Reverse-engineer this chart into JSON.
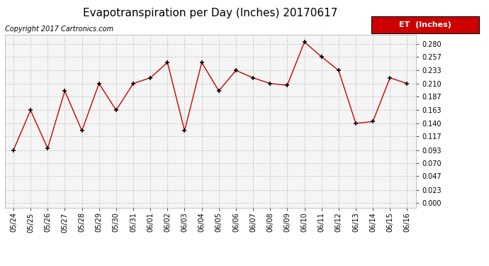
{
  "title": "Evapotranspiration per Day (Inches) 20170617",
  "copyright_text": "Copyright 2017 Cartronics.com",
  "legend_label": "ET  (Inches)",
  "legend_bg": "#cc0000",
  "legend_text_color": "#ffffff",
  "dates": [
    "05/24",
    "05/25",
    "05/26",
    "05/27",
    "05/28",
    "05/29",
    "05/30",
    "05/31",
    "06/01",
    "06/02",
    "06/03",
    "06/04",
    "06/05",
    "06/06",
    "06/07",
    "06/08",
    "06/09",
    "06/10",
    "06/11",
    "06/12",
    "06/13",
    "06/14",
    "06/15",
    "06/16"
  ],
  "values": [
    0.093,
    0.163,
    0.096,
    0.197,
    0.127,
    0.21,
    0.163,
    0.21,
    0.22,
    0.247,
    0.127,
    0.247,
    0.197,
    0.233,
    0.22,
    0.21,
    0.207,
    0.283,
    0.257,
    0.233,
    0.14,
    0.143,
    0.22,
    0.21
  ],
  "line_color": "#cc0000",
  "marker_color": "#000000",
  "bg_color": "#ffffff",
  "plot_bg_color": "#f5f5f5",
  "grid_color": "#bbbbbb",
  "yticks": [
    0.0,
    0.023,
    0.047,
    0.07,
    0.093,
    0.117,
    0.14,
    0.163,
    0.187,
    0.21,
    0.233,
    0.257,
    0.28
  ],
  "ylim": [
    -0.008,
    0.296
  ],
  "title_fontsize": 11,
  "copyright_fontsize": 7,
  "tick_fontsize": 7,
  "legend_fontsize": 8
}
